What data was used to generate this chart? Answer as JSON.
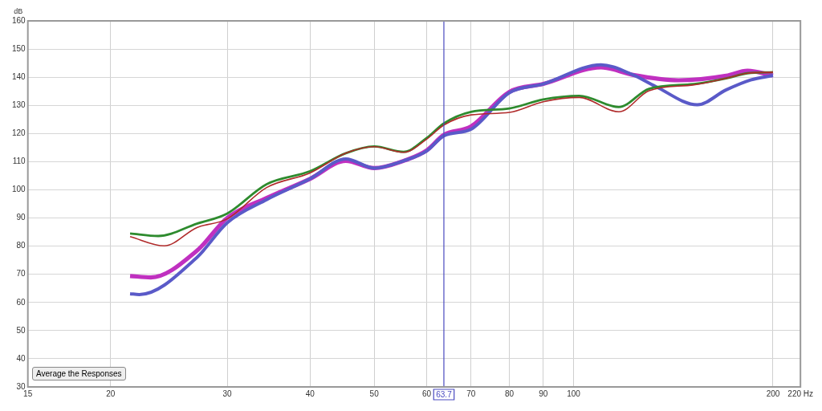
{
  "chart_data": {
    "type": "line",
    "ylabel": "dB",
    "log": "x",
    "grid": true,
    "legend": false,
    "marker": "none",
    "line_style": "solid",
    "xlim": [
      15,
      220
    ],
    "xticks": [
      15,
      20,
      30,
      40,
      50,
      60,
      70,
      80,
      90,
      100,
      200,
      {
        "value": 220,
        "label": "220 Hz"
      }
    ],
    "ylim": [
      30,
      160
    ],
    "yticks": [
      30,
      40,
      50,
      60,
      70,
      80,
      90,
      100,
      110,
      120,
      130,
      140,
      150,
      160
    ],
    "series": [
      {
        "color": "#b02a2a",
        "x": [
          21.4,
          24.1,
          27,
          30,
          34.4,
          40,
          45.3,
          50,
          55.4,
          60,
          63.7,
          70,
          80,
          90,
          102,
          117,
          130,
          152,
          170,
          183,
          200
        ],
        "values": [
          83.4,
          80.1,
          86.6,
          89.7,
          100.8,
          106,
          113,
          115.3,
          113.3,
          118,
          123,
          126.6,
          127.5,
          131.3,
          132.8,
          127.7,
          135.2,
          137.3,
          139.6,
          141.4,
          141.8
        ]
      },
      {
        "color": "#2e8b2e",
        "x": [
          21.4,
          23.6,
          27,
          30,
          34.4,
          40,
          45.3,
          50,
          55.4,
          60,
          63.7,
          70,
          80,
          90,
          102,
          117,
          130,
          152,
          170,
          183,
          200
        ],
        "values": [
          84.5,
          83.6,
          88,
          91.6,
          102,
          106.6,
          113,
          115.4,
          113.5,
          118.4,
          123.6,
          127.7,
          128.9,
          132.1,
          133.4,
          129.4,
          135.9,
          137.6,
          139.6,
          141.4,
          141.8
        ]
      },
      {
        "color": "#5a5ac8",
        "x": [
          21.4,
          22.1,
          27,
          30,
          34.4,
          40,
          45.3,
          50,
          55.4,
          60,
          63.7,
          70,
          80,
          90,
          110,
          123,
          133,
          153.7,
          170,
          185,
          200
        ],
        "values": [
          63.1,
          62.8,
          76,
          88.3,
          96.5,
          103.9,
          111,
          107.7,
          110.3,
          113.8,
          119.2,
          121.5,
          134.5,
          137.6,
          144.4,
          140.8,
          136.7,
          130.2,
          135.5,
          139,
          140.6
        ]
      },
      {
        "color": "#c030c0",
        "x": [
          21.4,
          23,
          27,
          30,
          34.4,
          40,
          45.3,
          50,
          55.4,
          60,
          63.7,
          70,
          80,
          90,
          110,
          123,
          144,
          170,
          183,
          200
        ],
        "values": [
          69.4,
          68.9,
          78.4,
          90,
          97.1,
          103.9,
          110.3,
          107.7,
          110.3,
          114,
          119.5,
          122.5,
          134.8,
          137.6,
          143.5,
          140.8,
          138.9,
          140.5,
          142.3,
          140.6
        ]
      }
    ],
    "ref_lines": [
      {
        "axis": "x",
        "value": 63.7,
        "label": "63.7",
        "color": "#4a4ac0"
      }
    ],
    "annotations": [
      "Average the Responses"
    ]
  }
}
